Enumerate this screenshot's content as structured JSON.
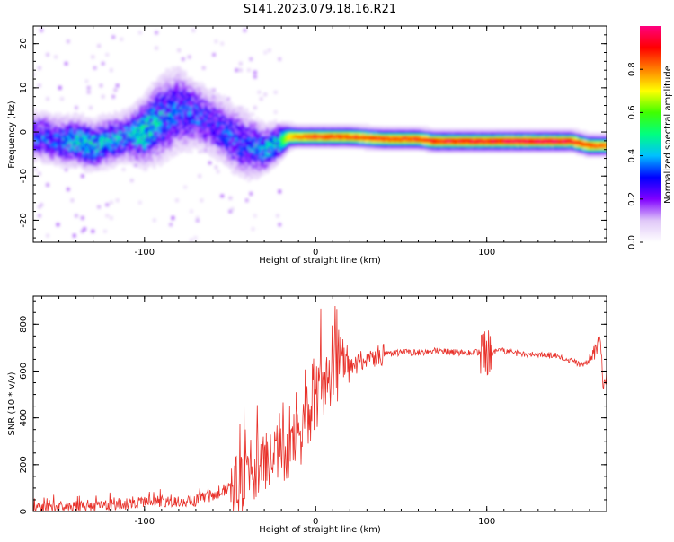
{
  "title": "S141.2023.079.18.16.R21",
  "chart_data": [
    {
      "type": "heatmap",
      "xlabel": "Height of straight line (km)",
      "ylabel": "Frequency (Hz)",
      "xlim": [
        -165,
        170
      ],
      "ylim": [
        -25,
        24
      ],
      "xticks": [
        -100,
        0,
        100
      ],
      "yticks": [
        -20,
        -10,
        0,
        10,
        20
      ],
      "grid": false,
      "colorbar": {
        "label": "Normalized spectral amplitude",
        "ticks": [
          "0.0",
          "0.2",
          "0.4",
          "0.6",
          "0.8"
        ],
        "tick_values": [
          0.0,
          0.2,
          0.4,
          0.6,
          0.8
        ],
        "range": [
          0,
          1
        ],
        "colors": [
          "#ffffff",
          "#e0c8f8",
          "#8000ff",
          "#0000ff",
          "#00c0ff",
          "#00ff80",
          "#40ff00",
          "#ffff00",
          "#ff8000",
          "#ff0000",
          "#ff0080"
        ]
      },
      "ridge": {
        "x": [
          -160,
          -150,
          -140,
          -130,
          -120,
          -110,
          -100,
          -90,
          -80,
          -70,
          -60,
          -50,
          -40,
          -30,
          -20,
          -15,
          -10,
          0,
          20,
          40,
          60,
          70,
          80,
          100,
          120,
          140,
          150,
          160,
          168
        ],
        "frequency": [
          -1,
          -2,
          -2,
          -3,
          -2,
          -1,
          0,
          3,
          5,
          4,
          2,
          -1,
          -3,
          -4,
          -2,
          -1,
          -1,
          -1,
          -1,
          -1.5,
          -1.5,
          -2,
          -2,
          -2,
          -2,
          -2,
          -2,
          -3,
          -3
        ],
        "amplitude": [
          0.3,
          0.3,
          0.4,
          0.4,
          0.35,
          0.35,
          0.45,
          0.35,
          0.3,
          0.3,
          0.25,
          0.3,
          0.3,
          0.35,
          0.5,
          0.7,
          0.8,
          0.85,
          0.85,
          0.85,
          0.85,
          0.9,
          0.9,
          0.9,
          0.95,
          0.95,
          0.9,
          0.85,
          0.8
        ],
        "spread": [
          3,
          3,
          3,
          3,
          3,
          3,
          4,
          5,
          5,
          4,
          4,
          4,
          4,
          3,
          2,
          1.2,
          1,
          1,
          1,
          1,
          1,
          1,
          1,
          1,
          1,
          1,
          1,
          1,
          1
        ]
      }
    },
    {
      "type": "line",
      "xlabel": "Height of straight line (km)",
      "ylabel": "SNR (10 * v/v)",
      "xlim": [
        -165,
        170
      ],
      "ylim": [
        0,
        920
      ],
      "xticks": [
        -100,
        0,
        100
      ],
      "yticks": [
        0,
        200,
        400,
        600,
        800
      ],
      "grid": false,
      "color": "#e8312a",
      "series": [
        {
          "x": [
            -165,
            -155,
            -145,
            -135,
            -125,
            -115,
            -105,
            -95,
            -85,
            -75,
            -65,
            -55,
            -45,
            -40,
            -35,
            -30,
            -25,
            -20,
            -15,
            -10,
            -5,
            0,
            5,
            10,
            15,
            20,
            25,
            30,
            35,
            40,
            45,
            50,
            60,
            70,
            80,
            90,
            95,
            98,
            100,
            102,
            105,
            110,
            120,
            130,
            140,
            145,
            150,
            155,
            160,
            163,
            165,
            167,
            168,
            170
          ],
          "y": [
            10,
            15,
            20,
            20,
            25,
            30,
            35,
            40,
            45,
            40,
            55,
            80,
            120,
            160,
            170,
            200,
            220,
            230,
            260,
            300,
            400,
            480,
            540,
            570,
            600,
            620,
            640,
            650,
            660,
            670,
            675,
            680,
            680,
            685,
            680,
            678,
            680,
            690,
            660,
            670,
            680,
            685,
            675,
            670,
            665,
            650,
            640,
            630,
            640,
            680,
            720,
            700,
            500,
            600
          ]
        }
      ]
    }
  ]
}
